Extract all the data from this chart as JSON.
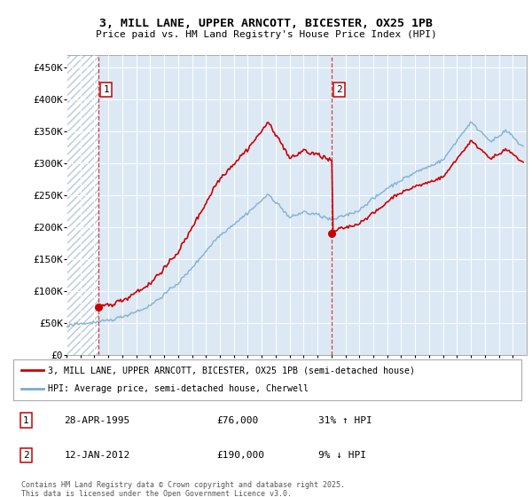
{
  "title_line1": "3, MILL LANE, UPPER ARNCOTT, BICESTER, OX25 1PB",
  "title_line2": "Price paid vs. HM Land Registry's House Price Index (HPI)",
  "ylim": [
    0,
    470000
  ],
  "yticks": [
    0,
    50000,
    100000,
    150000,
    200000,
    250000,
    300000,
    350000,
    400000,
    450000
  ],
  "ytick_labels": [
    "£0",
    "£50K",
    "£100K",
    "£150K",
    "£200K",
    "£250K",
    "£300K",
    "£350K",
    "£400K",
    "£450K"
  ],
  "background_color": "#dce9f5",
  "hatch_color": "#b8c8d8",
  "red_line_color": "#cc0000",
  "blue_line_color": "#7aabcf",
  "sale1_date_x": 1995.32,
  "sale1_price": 76000,
  "sale2_date_x": 2012.04,
  "sale2_price": 190000,
  "legend_label1": "3, MILL LANE, UPPER ARNCOTT, BICESTER, OX25 1PB (semi-detached house)",
  "legend_label2": "HPI: Average price, semi-detached house, Cherwell",
  "footer": "Contains HM Land Registry data © Crown copyright and database right 2025.\nThis data is licensed under the Open Government Licence v3.0.",
  "xmin": 1993,
  "xmax": 2026
}
